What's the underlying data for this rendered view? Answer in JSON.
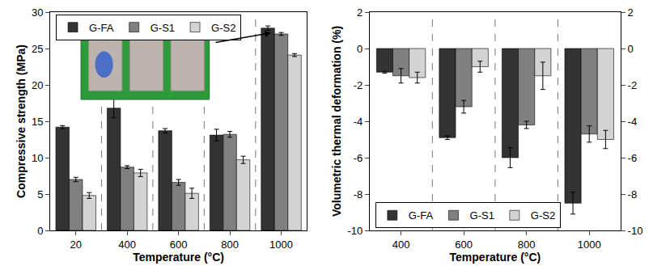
{
  "chart_data": [
    {
      "type": "bar",
      "x_label": "Temperature (°C)",
      "y_label": "Compressive strength (MPa)",
      "categories": [
        "20",
        "400",
        "600",
        "800",
        "1000"
      ],
      "series": [
        {
          "name": "G-FA",
          "color": "#333333",
          "values": [
            14.2,
            16.8,
            13.7,
            13.1,
            27.8
          ],
          "errors": [
            0.2,
            1.3,
            0.3,
            0.8,
            0.3
          ]
        },
        {
          "name": "G-S1",
          "color": "#808080",
          "values": [
            7.0,
            8.7,
            6.6,
            13.2,
            27.0
          ],
          "errors": [
            0.3,
            0.2,
            0.4,
            0.4,
            0.2
          ]
        },
        {
          "name": "G-S2",
          "color": "#d3d3d3",
          "values": [
            4.8,
            7.9,
            5.1,
            9.7,
            24.1
          ],
          "errors": [
            0.4,
            0.5,
            0.7,
            0.5,
            0.2
          ]
        }
      ],
      "ylim": [
        0,
        30
      ],
      "yticks": [
        0,
        5,
        10,
        15,
        20,
        25,
        30
      ],
      "legend": "upper left",
      "grid": false
    },
    {
      "type": "bar",
      "x_label": "Temperature (°C)",
      "y_label": "Volumetric thermal deformation (%)",
      "categories": [
        "400",
        "600",
        "800",
        "1000"
      ],
      "series": [
        {
          "name": "G-FA",
          "color": "#333333",
          "values": [
            -1.3,
            -4.9,
            -6.0,
            -8.5
          ],
          "errors": [
            0.05,
            0.1,
            0.55,
            0.6
          ]
        },
        {
          "name": "G-S1",
          "color": "#808080",
          "values": [
            -1.5,
            -3.2,
            -4.2,
            -4.7
          ],
          "errors": [
            0.4,
            0.35,
            0.2,
            0.45
          ]
        },
        {
          "name": "G-S2",
          "color": "#d3d3d3",
          "values": [
            -1.6,
            -1.0,
            -1.5,
            -5.0
          ],
          "errors": [
            0.3,
            0.3,
            0.75,
            0.5
          ]
        }
      ],
      "ylim": [
        -10,
        2
      ],
      "yticks": [
        -10,
        -8,
        -6,
        -4,
        -2,
        0,
        2
      ],
      "legend": "lower left",
      "grid": false
    }
  ]
}
